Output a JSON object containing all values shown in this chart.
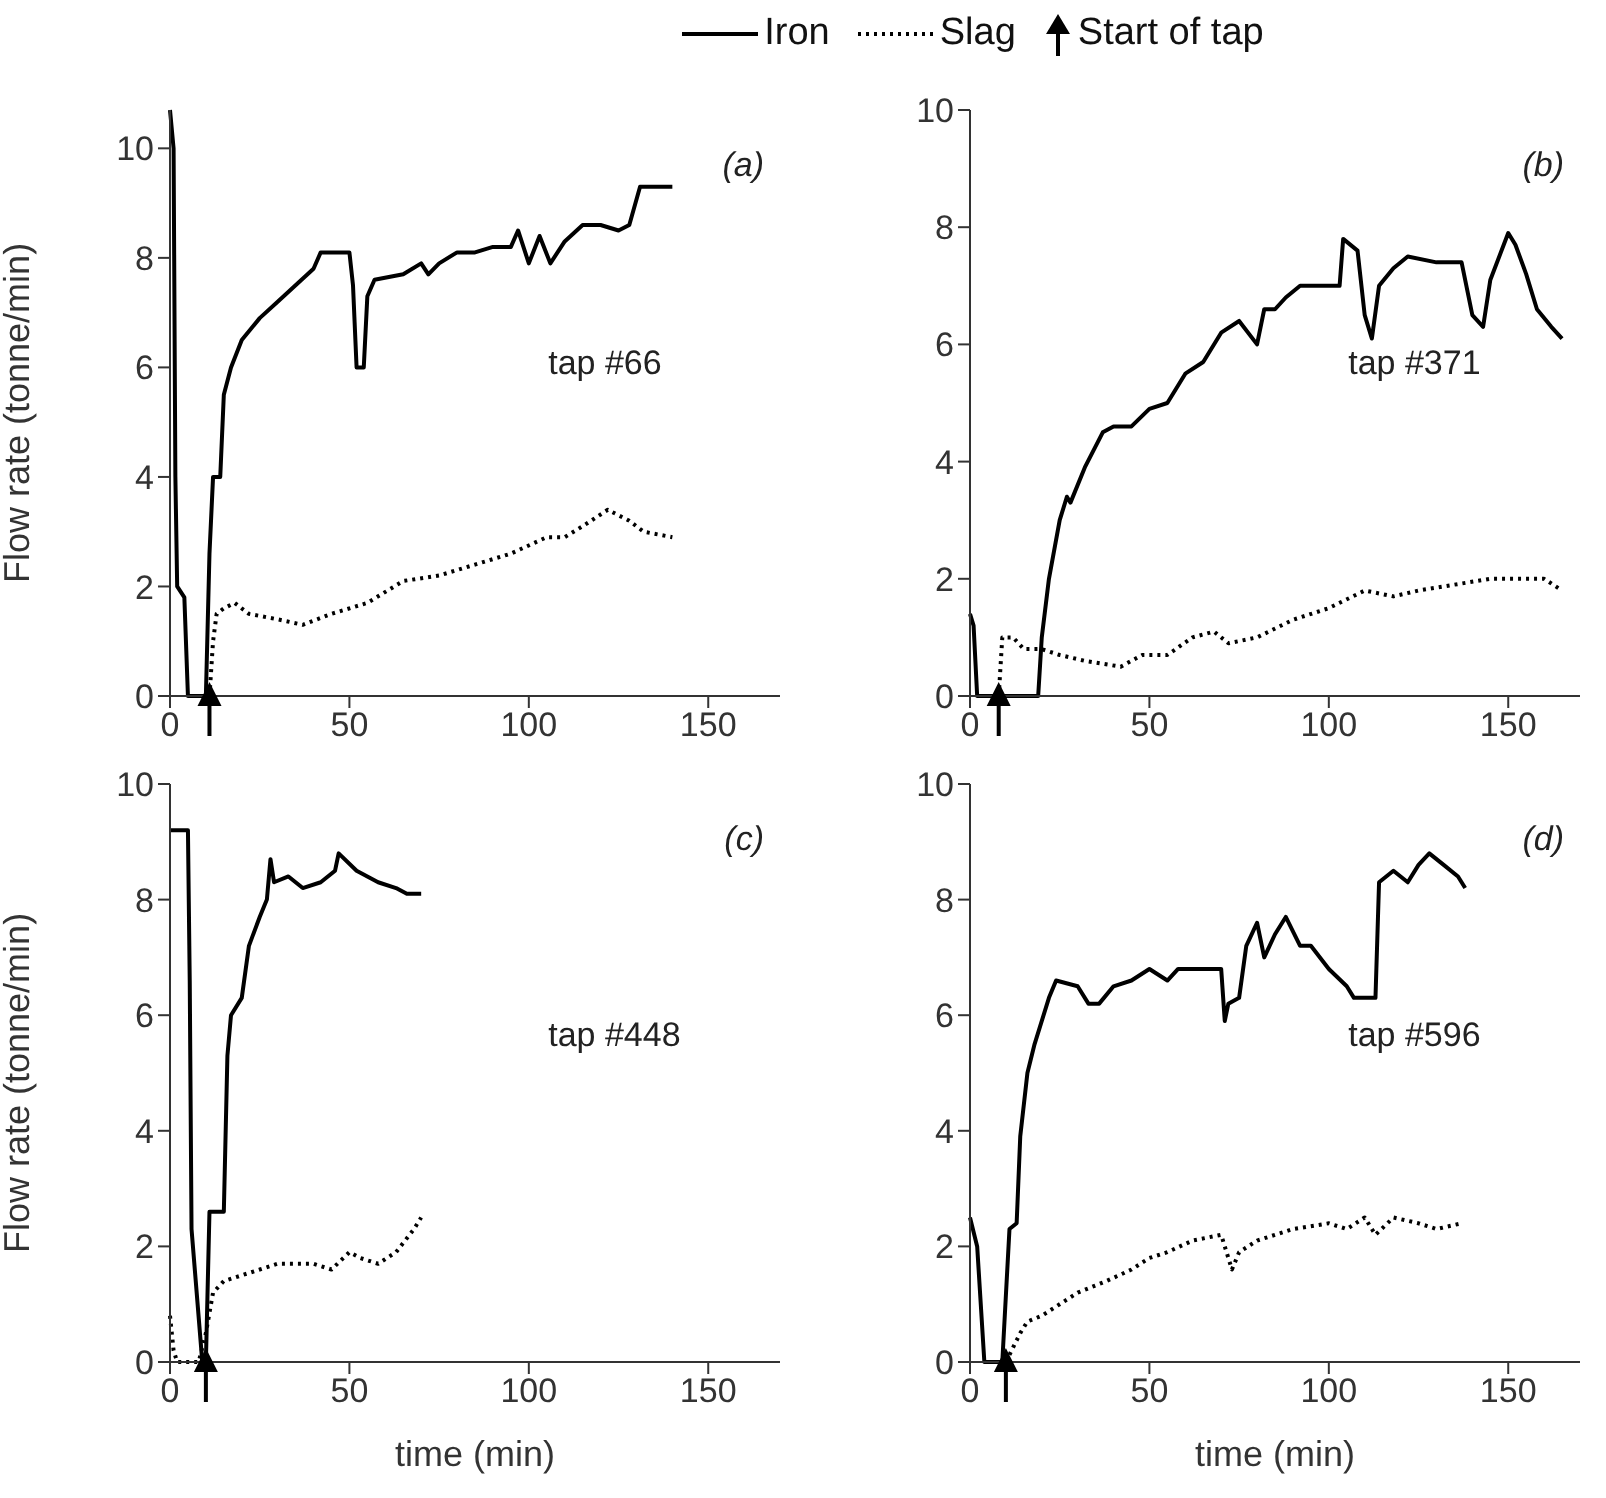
{
  "chart_data": [
    {
      "type": "line",
      "legend": "top",
      "ylabel": "Flow rate (tonne/min)",
      "xlim": [
        0,
        170
      ],
      "xticks": [
        0,
        50,
        100,
        150
      ],
      "ylim": [
        0,
        10.7
      ],
      "yticks": [
        0,
        2,
        4,
        6,
        8,
        10
      ],
      "annotations": [
        "(a)",
        "tap #66"
      ],
      "series": [
        {
          "name": "Iron",
          "color": "#000000",
          "line_style": "solid",
          "x": [
            0,
            1,
            1.5,
            2,
            4,
            5,
            10,
            11,
            12,
            14,
            15,
            17,
            20,
            25,
            30,
            35,
            40,
            42,
            50,
            51,
            52,
            54,
            55,
            57,
            65,
            70,
            72,
            75,
            80,
            85,
            90,
            95,
            97,
            100,
            103,
            106,
            110,
            115,
            120,
            125,
            128,
            131,
            140
          ],
          "values": [
            10.7,
            10,
            4,
            2,
            1.8,
            0,
            0,
            2.6,
            4,
            4,
            5.5,
            6,
            6.5,
            6.9,
            7.2,
            7.5,
            7.8,
            8.1,
            8.1,
            7.5,
            6,
            6,
            7.3,
            7.6,
            7.7,
            7.9,
            7.7,
            7.9,
            8.1,
            8.1,
            8.2,
            8.2,
            8.5,
            7.9,
            8.4,
            7.9,
            8.3,
            8.6,
            8.6,
            8.5,
            8.6,
            9.3,
            9.3
          ]
        },
        {
          "name": "Slag",
          "color": "#000000",
          "line_style": "dotted",
          "x": [
            11,
            12,
            13,
            15,
            18,
            22,
            30,
            37,
            45,
            55,
            65,
            75,
            85,
            95,
            105,
            110,
            115,
            122,
            128,
            132,
            140
          ],
          "values": [
            0,
            1,
            1.5,
            1.6,
            1.7,
            1.5,
            1.4,
            1.3,
            1.5,
            1.7,
            2.1,
            2.2,
            2.4,
            2.6,
            2.9,
            2.9,
            3.1,
            3.4,
            3.2,
            3.0,
            2.9
          ]
        },
        {
          "name": "Start of tap",
          "type": "scatter",
          "marker": "triangle",
          "color": "#000000",
          "x": [
            11
          ],
          "values": [
            0
          ]
        }
      ]
    },
    {
      "type": "line",
      "xlim": [
        0,
        170
      ],
      "xticks": [
        0,
        50,
        100,
        150
      ],
      "ylim": [
        0,
        10
      ],
      "yticks": [
        0,
        2,
        4,
        6,
        8,
        10
      ],
      "annotations": [
        "(b)",
        "tap #371"
      ],
      "series": [
        {
          "color": "#000000",
          "line_style": "solid",
          "x": [
            0,
            1,
            2,
            19,
            20,
            22,
            25,
            27,
            28,
            32,
            37,
            40,
            45,
            50,
            55,
            60,
            65,
            70,
            75,
            80,
            82,
            85,
            88,
            92,
            103,
            104,
            108,
            110,
            112,
            114,
            118,
            122,
            130,
            137,
            140,
            143,
            145,
            150,
            152,
            155,
            158,
            162,
            165
          ],
          "values": [
            1.4,
            1.2,
            0,
            0,
            1,
            2,
            3,
            3.4,
            3.3,
            3.9,
            4.5,
            4.6,
            4.6,
            4.9,
            5.0,
            5.5,
            5.7,
            6.2,
            6.4,
            6.0,
            6.6,
            6.6,
            6.8,
            7.0,
            7.0,
            7.8,
            7.6,
            6.5,
            6.1,
            7.0,
            7.3,
            7.5,
            7.4,
            7.4,
            6.5,
            6.3,
            7.1,
            7.9,
            7.7,
            7.2,
            6.6,
            6.3,
            6.1
          ]
        },
        {
          "color": "#000000",
          "line_style": "dotted",
          "x": [
            8,
            9,
            12,
            15,
            20,
            25,
            32,
            42,
            48,
            55,
            62,
            68,
            72,
            80,
            90,
            100,
            110,
            118,
            125,
            135,
            145,
            160,
            165
          ],
          "values": [
            0,
            1,
            1,
            0.8,
            0.8,
            0.7,
            0.6,
            0.5,
            0.7,
            0.7,
            1.0,
            1.1,
            0.9,
            1.0,
            1.3,
            1.5,
            1.8,
            1.7,
            1.8,
            1.9,
            2.0,
            2.0,
            1.8
          ]
        },
        {
          "type": "scatter",
          "marker": "triangle",
          "color": "#000000",
          "x": [
            8
          ],
          "values": [
            0
          ]
        }
      ]
    },
    {
      "type": "line",
      "ylabel": "Flow rate (tonne/min)",
      "xlabel": "time (min)",
      "xlim": [
        0,
        170
      ],
      "xticks": [
        0,
        50,
        100,
        150
      ],
      "ylim": [
        0,
        10
      ],
      "yticks": [
        0,
        2,
        4,
        6,
        8,
        10
      ],
      "annotations": [
        "(c)",
        "tap #448"
      ],
      "series": [
        {
          "color": "#000000",
          "line_style": "solid",
          "x": [
            0,
            5,
            5.5,
            6,
            9,
            10,
            11,
            15,
            16,
            17,
            20,
            22,
            25,
            27,
            28,
            29,
            33,
            37,
            42,
            46,
            47,
            52,
            58,
            63,
            66,
            70
          ],
          "values": [
            9.2,
            9.2,
            6.6,
            2.3,
            0,
            0,
            2.6,
            2.6,
            5.3,
            6,
            6.3,
            7.2,
            7.7,
            8,
            8.7,
            8.3,
            8.4,
            8.2,
            8.3,
            8.5,
            8.8,
            8.5,
            8.3,
            8.2,
            8.1,
            8.1
          ]
        },
        {
          "color": "#000000",
          "line_style": "dotted",
          "x": [
            0,
            1,
            2,
            8,
            10,
            12,
            15,
            20,
            25,
            30,
            40,
            45,
            50,
            53,
            58,
            63,
            68,
            70
          ],
          "values": [
            0.8,
            0.2,
            0,
            0,
            0.5,
            1.2,
            1.4,
            1.5,
            1.6,
            1.7,
            1.7,
            1.6,
            1.9,
            1.8,
            1.7,
            1.9,
            2.3,
            2.5
          ]
        },
        {
          "type": "scatter",
          "marker": "triangle",
          "color": "#000000",
          "x": [
            10
          ],
          "values": [
            0
          ]
        }
      ]
    },
    {
      "type": "line",
      "xlabel": "time (min)",
      "xlim": [
        0,
        170
      ],
      "xticks": [
        0,
        50,
        100,
        150
      ],
      "ylim": [
        0,
        10
      ],
      "yticks": [
        0,
        2,
        4,
        6,
        8,
        10
      ],
      "annotations": [
        "(d)",
        "tap #596"
      ],
      "series": [
        {
          "color": "#000000",
          "line_style": "solid",
          "x": [
            0,
            2,
            4,
            9,
            11,
            13,
            14,
            16,
            18,
            22,
            24,
            30,
            33,
            36,
            40,
            45,
            50,
            55,
            58,
            70,
            71,
            72,
            75,
            77,
            80,
            82,
            85,
            88,
            92,
            95,
            100,
            105,
            107,
            113,
            114,
            118,
            122,
            125,
            128,
            132,
            136,
            138
          ],
          "values": [
            2.5,
            2,
            0,
            0,
            2.3,
            2.4,
            3.9,
            5,
            5.5,
            6.3,
            6.6,
            6.5,
            6.2,
            6.2,
            6.5,
            6.6,
            6.8,
            6.6,
            6.8,
            6.8,
            5.9,
            6.2,
            6.3,
            7.2,
            7.6,
            7.0,
            7.4,
            7.7,
            7.2,
            7.2,
            6.8,
            6.5,
            6.3,
            6.3,
            8.3,
            8.5,
            8.3,
            8.6,
            8.8,
            8.6,
            8.4,
            8.2
          ]
        },
        {
          "color": "#000000",
          "line_style": "dotted",
          "x": [
            10,
            14,
            16,
            20,
            25,
            30,
            38,
            45,
            50,
            55,
            62,
            70,
            73,
            75,
            80,
            90,
            100,
            105,
            110,
            113,
            118,
            125,
            130,
            137
          ],
          "values": [
            0,
            0.5,
            0.7,
            0.8,
            1,
            1.2,
            1.4,
            1.6,
            1.8,
            1.9,
            2.1,
            2.2,
            1.6,
            1.9,
            2.1,
            2.3,
            2.4,
            2.3,
            2.5,
            2.2,
            2.5,
            2.4,
            2.3,
            2.4
          ]
        },
        {
          "type": "scatter",
          "marker": "triangle",
          "color": "#000000",
          "x": [
            10
          ],
          "values": [
            0
          ]
        }
      ]
    }
  ]
}
